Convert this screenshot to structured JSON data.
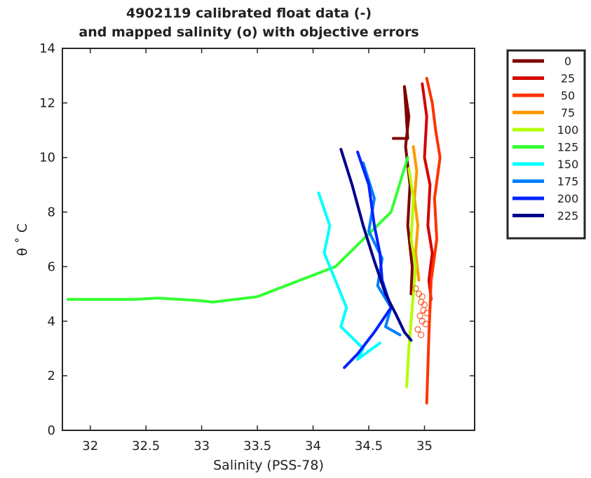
{
  "chart_data": {
    "type": "line",
    "title": "4902119 calibrated float data (-)",
    "subtitle": "and mapped salinity (o) with objective errors",
    "xlabel": "Salinity (PSS-78)",
    "ylabel": "θ ˚ C",
    "xlim": [
      31.75,
      35.45
    ],
    "ylim": [
      0,
      14
    ],
    "x_ticks": [
      32,
      32.5,
      33,
      33.5,
      34,
      34.5,
      35
    ],
    "y_ticks": [
      0,
      2,
      4,
      6,
      8,
      10,
      12,
      14
    ],
    "x_tick_labels": [
      "32",
      "32.5",
      "33",
      "33.5",
      "34",
      "34.5",
      "35"
    ],
    "y_tick_labels": [
      "0",
      "2",
      "4",
      "6",
      "8",
      "10",
      "12",
      "14"
    ],
    "grid": false,
    "legend_position": "outside-right",
    "series": [
      {
        "name": "0",
        "color": "#7f0000",
        "x": [
          34.72,
          34.85,
          34.82,
          34.86,
          34.83,
          34.87,
          34.85,
          34.89,
          34.88
        ],
        "y": [
          10.7,
          10.7,
          12.6,
          11.5,
          10.4,
          9.0,
          7.5,
          6.0,
          5.0
        ]
      },
      {
        "name": "25",
        "color": "#d40000",
        "x": [
          34.98,
          35.02,
          35.0,
          35.05,
          35.03,
          35.07,
          35.04,
          35.06
        ],
        "y": [
          12.7,
          11.5,
          10.0,
          9.0,
          7.5,
          6.5,
          5.5,
          4.8
        ]
      },
      {
        "name": "50",
        "color": "#ff3300",
        "x": [
          35.02,
          35.07,
          35.1,
          35.14,
          35.09,
          35.11,
          35.06,
          35.04,
          35.02
        ],
        "y": [
          12.9,
          12.0,
          11.0,
          10.0,
          8.5,
          7.0,
          5.5,
          3.5,
          1.0
        ]
      },
      {
        "name": "75",
        "color": "#ff9900",
        "x": [
          34.9,
          34.93,
          34.91,
          34.94,
          34.92,
          34.95
        ],
        "y": [
          10.4,
          9.5,
          8.5,
          7.5,
          6.5,
          5.5
        ]
      },
      {
        "name": "100",
        "color": "#b3ff00",
        "x": [
          34.86,
          34.9,
          34.88,
          34.92,
          34.89,
          34.86,
          34.84
        ],
        "y": [
          9.6,
          8.5,
          7.0,
          6.0,
          4.5,
          3.0,
          1.6
        ]
      },
      {
        "name": "125",
        "color": "#33ff33",
        "x": [
          31.8,
          32.4,
          32.6,
          33.0,
          33.1,
          33.5,
          34.2,
          34.5,
          34.7,
          34.85
        ],
        "y": [
          4.8,
          4.8,
          4.85,
          4.75,
          4.7,
          4.9,
          6.0,
          7.2,
          8.0,
          10.0
        ]
      },
      {
        "name": "150",
        "color": "#00ffff",
        "x": [
          34.05,
          34.15,
          34.1,
          34.2,
          34.3,
          34.25,
          34.45,
          34.4,
          34.6
        ],
        "y": [
          8.7,
          7.5,
          6.5,
          5.5,
          4.5,
          3.8,
          3.0,
          2.6,
          3.2
        ]
      },
      {
        "name": "175",
        "color": "#0080ff",
        "x": [
          34.45,
          34.55,
          34.5,
          34.62,
          34.58,
          34.7,
          34.65,
          34.78
        ],
        "y": [
          9.8,
          8.5,
          7.3,
          6.3,
          5.3,
          4.5,
          3.8,
          3.5
        ]
      },
      {
        "name": "200",
        "color": "#0022ff",
        "x": [
          34.4,
          34.5,
          34.55,
          34.6,
          34.62,
          34.7,
          34.55,
          34.4,
          34.28
        ],
        "y": [
          10.2,
          9.0,
          7.5,
          6.5,
          5.5,
          4.5,
          3.6,
          2.8,
          2.3
        ]
      },
      {
        "name": "225",
        "color": "#00008b",
        "x": [
          34.25,
          34.35,
          34.45,
          34.55,
          34.65,
          34.75,
          34.82,
          34.88
        ],
        "y": [
          10.3,
          9.0,
          7.5,
          6.2,
          5.0,
          4.2,
          3.6,
          3.3
        ]
      }
    ],
    "mapped_markers": {
      "color": "#ff5a2a",
      "x": [
        34.92,
        34.95,
        34.98,
        34.97,
        35.0,
        34.99,
        35.02,
        34.96,
        34.98,
        35.01,
        34.94,
        34.97
      ],
      "y": [
        5.2,
        5.0,
        4.9,
        4.7,
        4.6,
        4.4,
        4.3,
        4.2,
        4.0,
        3.9,
        3.7,
        3.5
      ]
    }
  }
}
